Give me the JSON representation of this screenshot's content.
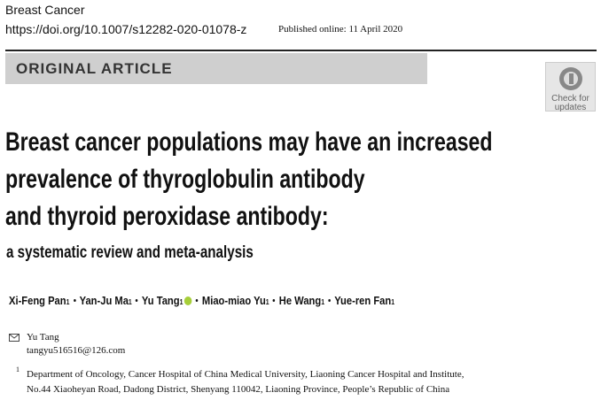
{
  "header": {
    "journal": "Breast Cancer",
    "doi": "https://doi.org/10.1007/s12282-020-01078-z",
    "published": "Published online: 11 April 2020"
  },
  "section_label": "ORIGINAL ARTICLE",
  "badge": {
    "line1": "Check for",
    "line2": "updates"
  },
  "title": {
    "lines": [
      "Breast cancer populations may have an increased",
      "prevalence of thyroglobulin antibody",
      "and thyroid peroxidase antibody:"
    ],
    "subtitle": "a systematic review and meta-analysis"
  },
  "authors": [
    {
      "name": "Xi-Feng Pan",
      "affiliation": "1"
    },
    {
      "name": "Yan-Ju Ma",
      "affiliation": "1"
    },
    {
      "name": "Yu Tang",
      "affiliation": "1",
      "orcid": true
    },
    {
      "name": "Miao-miao Yu",
      "affiliation": "1"
    },
    {
      "name": "He Wang",
      "affiliation": "1"
    },
    {
      "name": "Yue-ren Fan",
      "affiliation": "1"
    }
  ],
  "correspondence": {
    "name": "Yu Tang",
    "email": "tangyu516516@126.com"
  },
  "affiliations": [
    {
      "marker": "1",
      "lines": [
        "Department of Oncology, Cancer Hospital of China Medical University, Liaoning Cancer Hospital and Institute,",
        "No.44 Xiaoheyan Road, Dadong District, Shenyang 110042, Liaoning Province, People’s Republic of China"
      ]
    }
  ]
}
